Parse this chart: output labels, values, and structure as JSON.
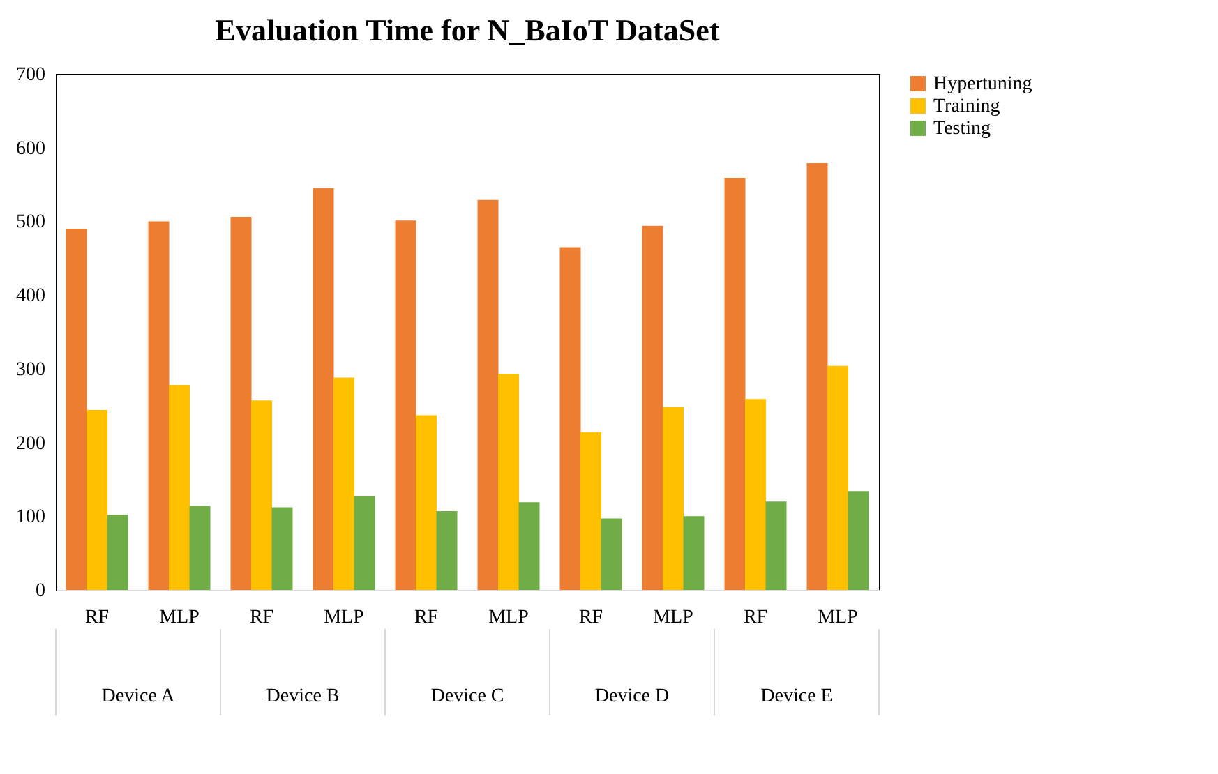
{
  "chart_data": {
    "type": "bar",
    "title": "Evaluation Time for N_BaIoT DataSet",
    "categories": [
      "RF",
      "MLP",
      "RF",
      "MLP",
      "RF",
      "MLP",
      "RF",
      "MLP",
      "RF",
      "MLP"
    ],
    "annotations": [
      "Device A",
      "Device B",
      "Device C",
      "Device D",
      "Device E"
    ],
    "series": [
      {
        "name": "Hypertuning",
        "color": "#ed7d31",
        "values": [
          490,
          500,
          506,
          545,
          501,
          529,
          465,
          494,
          559,
          579
        ]
      },
      {
        "name": "Training",
        "color": "#ffc000",
        "values": [
          244,
          278,
          257,
          288,
          237,
          293,
          214,
          248,
          259,
          304
        ]
      },
      {
        "name": "Testing",
        "color": "#70ad47",
        "values": [
          102,
          114,
          112,
          127,
          107,
          119,
          97,
          100,
          120,
          134
        ]
      }
    ],
    "ylim": [
      0,
      700
    ],
    "yticks": [
      0,
      100,
      200,
      300,
      400,
      500,
      600,
      700
    ],
    "grid": false,
    "legend": "right"
  }
}
